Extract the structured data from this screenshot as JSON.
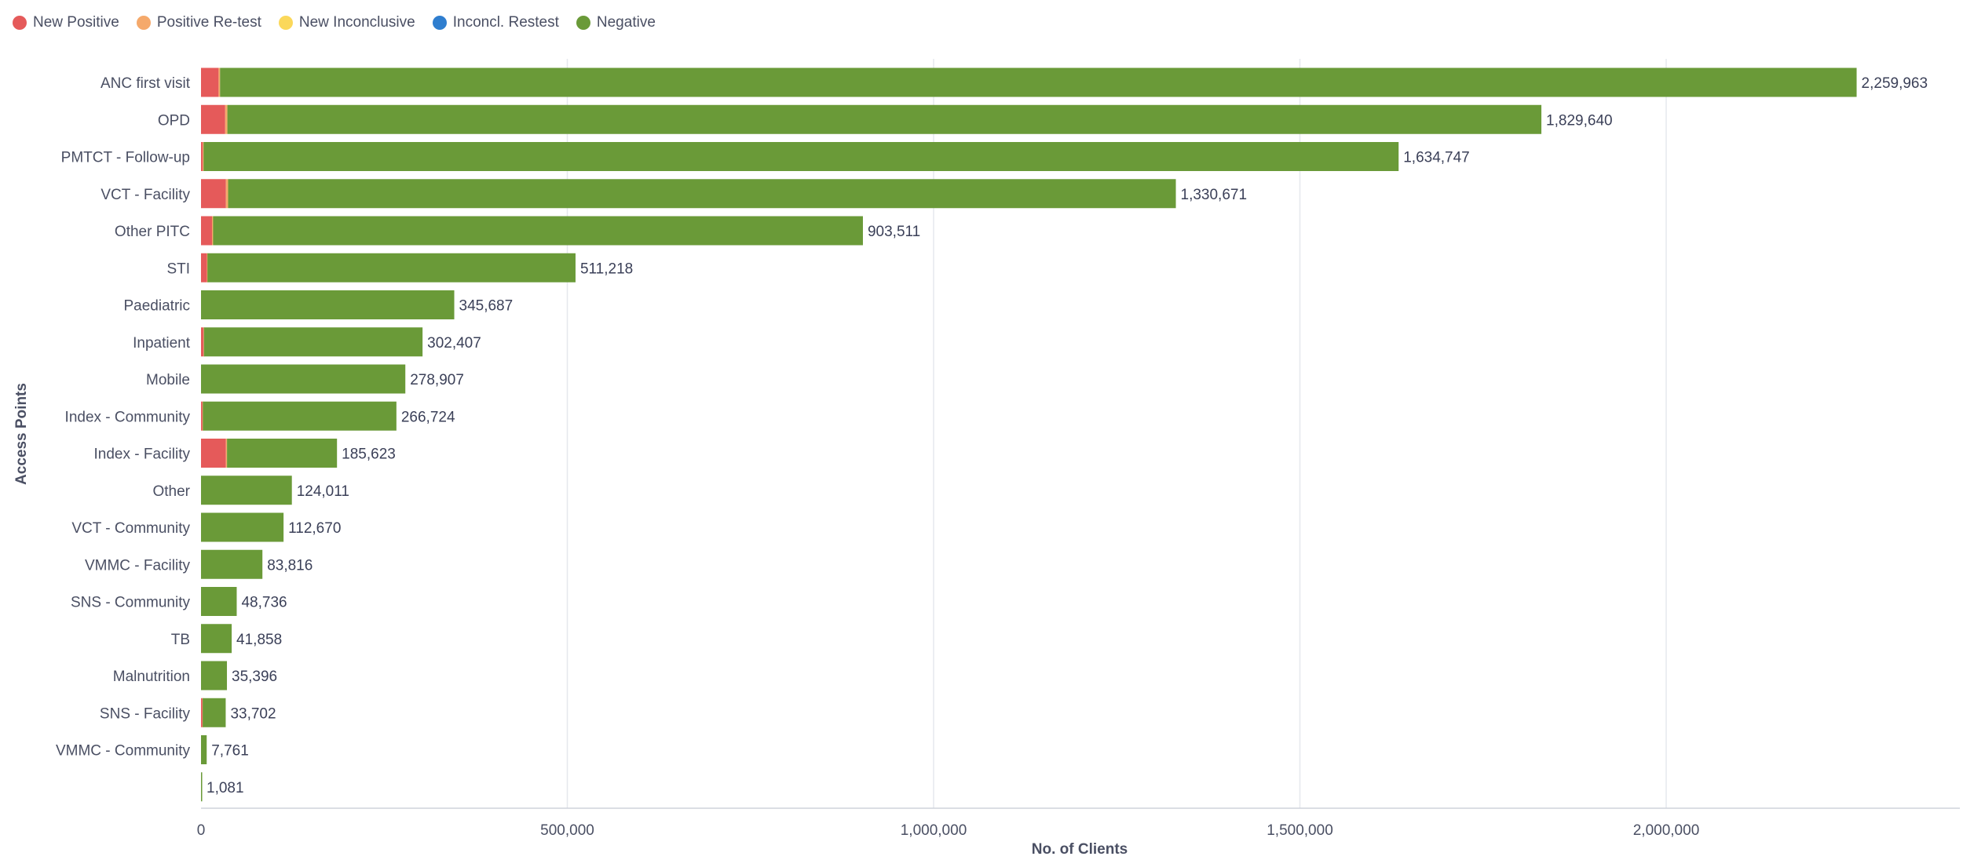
{
  "chart_data": {
    "type": "bar",
    "orientation": "horizontal",
    "stacked": true,
    "xlabel": "No. of Clients",
    "ylabel": "Access Points",
    "xlim": [
      0,
      2400000
    ],
    "xticks": [
      0,
      500000,
      1000000,
      1500000,
      2000000
    ],
    "xtick_labels": [
      "0",
      "500,000",
      "1,000,000",
      "1,500,000",
      "2,000,000"
    ],
    "grid": "vertical",
    "legend_position": "top-left",
    "categories": [
      "ANC first visit",
      "OPD",
      "PMTCT - Follow-up",
      "VCT - Facility",
      "Other PITC",
      "STI",
      "Paediatric",
      "Inpatient",
      "Mobile",
      "Index - Community",
      "Index - Facility",
      "Other",
      "VCT - Community",
      "VMMC - Facility",
      "SNS - Community",
      "TB",
      "Malnutrition",
      "SNS - Facility",
      "VMMC - Community",
      ""
    ],
    "totals": [
      2259963,
      1829640,
      1634747,
      1330671,
      903511,
      511218,
      345687,
      302407,
      278907,
      266724,
      185623,
      124011,
      112670,
      83816,
      48736,
      41858,
      35396,
      33702,
      7761,
      1081
    ],
    "total_labels": [
      "2,259,963",
      "1,829,640",
      "1,634,747",
      "1,330,671",
      "903,511",
      "511,218",
      "345,687",
      "302,407",
      "278,907",
      "266,724",
      "185,623",
      "124,011",
      "112,670",
      "83,816",
      "48,736",
      "41,858",
      "35,396",
      "33,702",
      "7,761",
      "1,081"
    ],
    "series": [
      {
        "name": "New Positive",
        "color": "#e55a5a",
        "values": [
          24000,
          33000,
          2500,
          34000,
          15000,
          8000,
          0,
          3500,
          0,
          2000,
          34000,
          0,
          0,
          0,
          0,
          0,
          0,
          2000,
          0,
          0
        ]
      },
      {
        "name": "Positive Re-test",
        "color": "#f5a96b",
        "values": [
          2000,
          3000,
          1000,
          3000,
          1500,
          800,
          0,
          500,
          0,
          500,
          1500,
          0,
          0,
          0,
          0,
          0,
          0,
          300,
          0,
          0
        ]
      },
      {
        "name": "New Inconclusive",
        "color": "#fbd85a",
        "values": [
          0,
          0,
          0,
          0,
          0,
          0,
          0,
          0,
          0,
          0,
          0,
          0,
          0,
          0,
          0,
          0,
          0,
          0,
          0,
          0
        ]
      },
      {
        "name": "Inconcl. Restest",
        "color": "#2f7ecf",
        "values": [
          0,
          0,
          0,
          0,
          0,
          0,
          0,
          0,
          0,
          0,
          0,
          0,
          0,
          0,
          0,
          0,
          0,
          0,
          0,
          0
        ]
      },
      {
        "name": "Negative",
        "color": "#6a9a38",
        "values": [
          2233963,
          1793640,
          1631247,
          1293671,
          887011,
          502418,
          345687,
          298407,
          278907,
          264224,
          150123,
          124011,
          112670,
          83816,
          48736,
          41858,
          35396,
          31402,
          7761,
          1081
        ]
      }
    ]
  }
}
